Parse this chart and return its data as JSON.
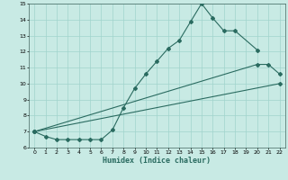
{
  "title": "",
  "xlabel": "Humidex (Indice chaleur)",
  "bg_color": "#c8eae4",
  "grid_color": "#a0d4cc",
  "line_color": "#2a6b60",
  "line1_x": [
    0,
    1,
    2,
    3,
    4,
    5,
    6,
    7,
    8,
    9,
    10,
    11,
    12,
    13,
    14,
    15,
    16,
    17,
    18,
    20
  ],
  "line1_y": [
    7.0,
    6.7,
    6.5,
    6.5,
    6.5,
    6.5,
    6.5,
    7.1,
    8.5,
    9.7,
    10.6,
    11.4,
    12.2,
    12.7,
    13.85,
    15.0,
    14.1,
    13.3,
    13.3,
    12.1
  ],
  "line2_x": [
    0,
    20,
    21,
    22
  ],
  "line2_y": [
    7.0,
    11.2,
    11.2,
    10.6
  ],
  "line3_x": [
    0,
    22
  ],
  "line3_y": [
    7.0,
    10.0
  ],
  "ylim": [
    6,
    15
  ],
  "xlim": [
    -0.5,
    22.5
  ],
  "yticks": [
    6,
    7,
    8,
    9,
    10,
    11,
    12,
    13,
    14,
    15
  ],
  "xticks": [
    0,
    1,
    2,
    3,
    4,
    5,
    6,
    7,
    8,
    9,
    10,
    11,
    12,
    13,
    14,
    15,
    16,
    17,
    18,
    19,
    20,
    21,
    22
  ]
}
